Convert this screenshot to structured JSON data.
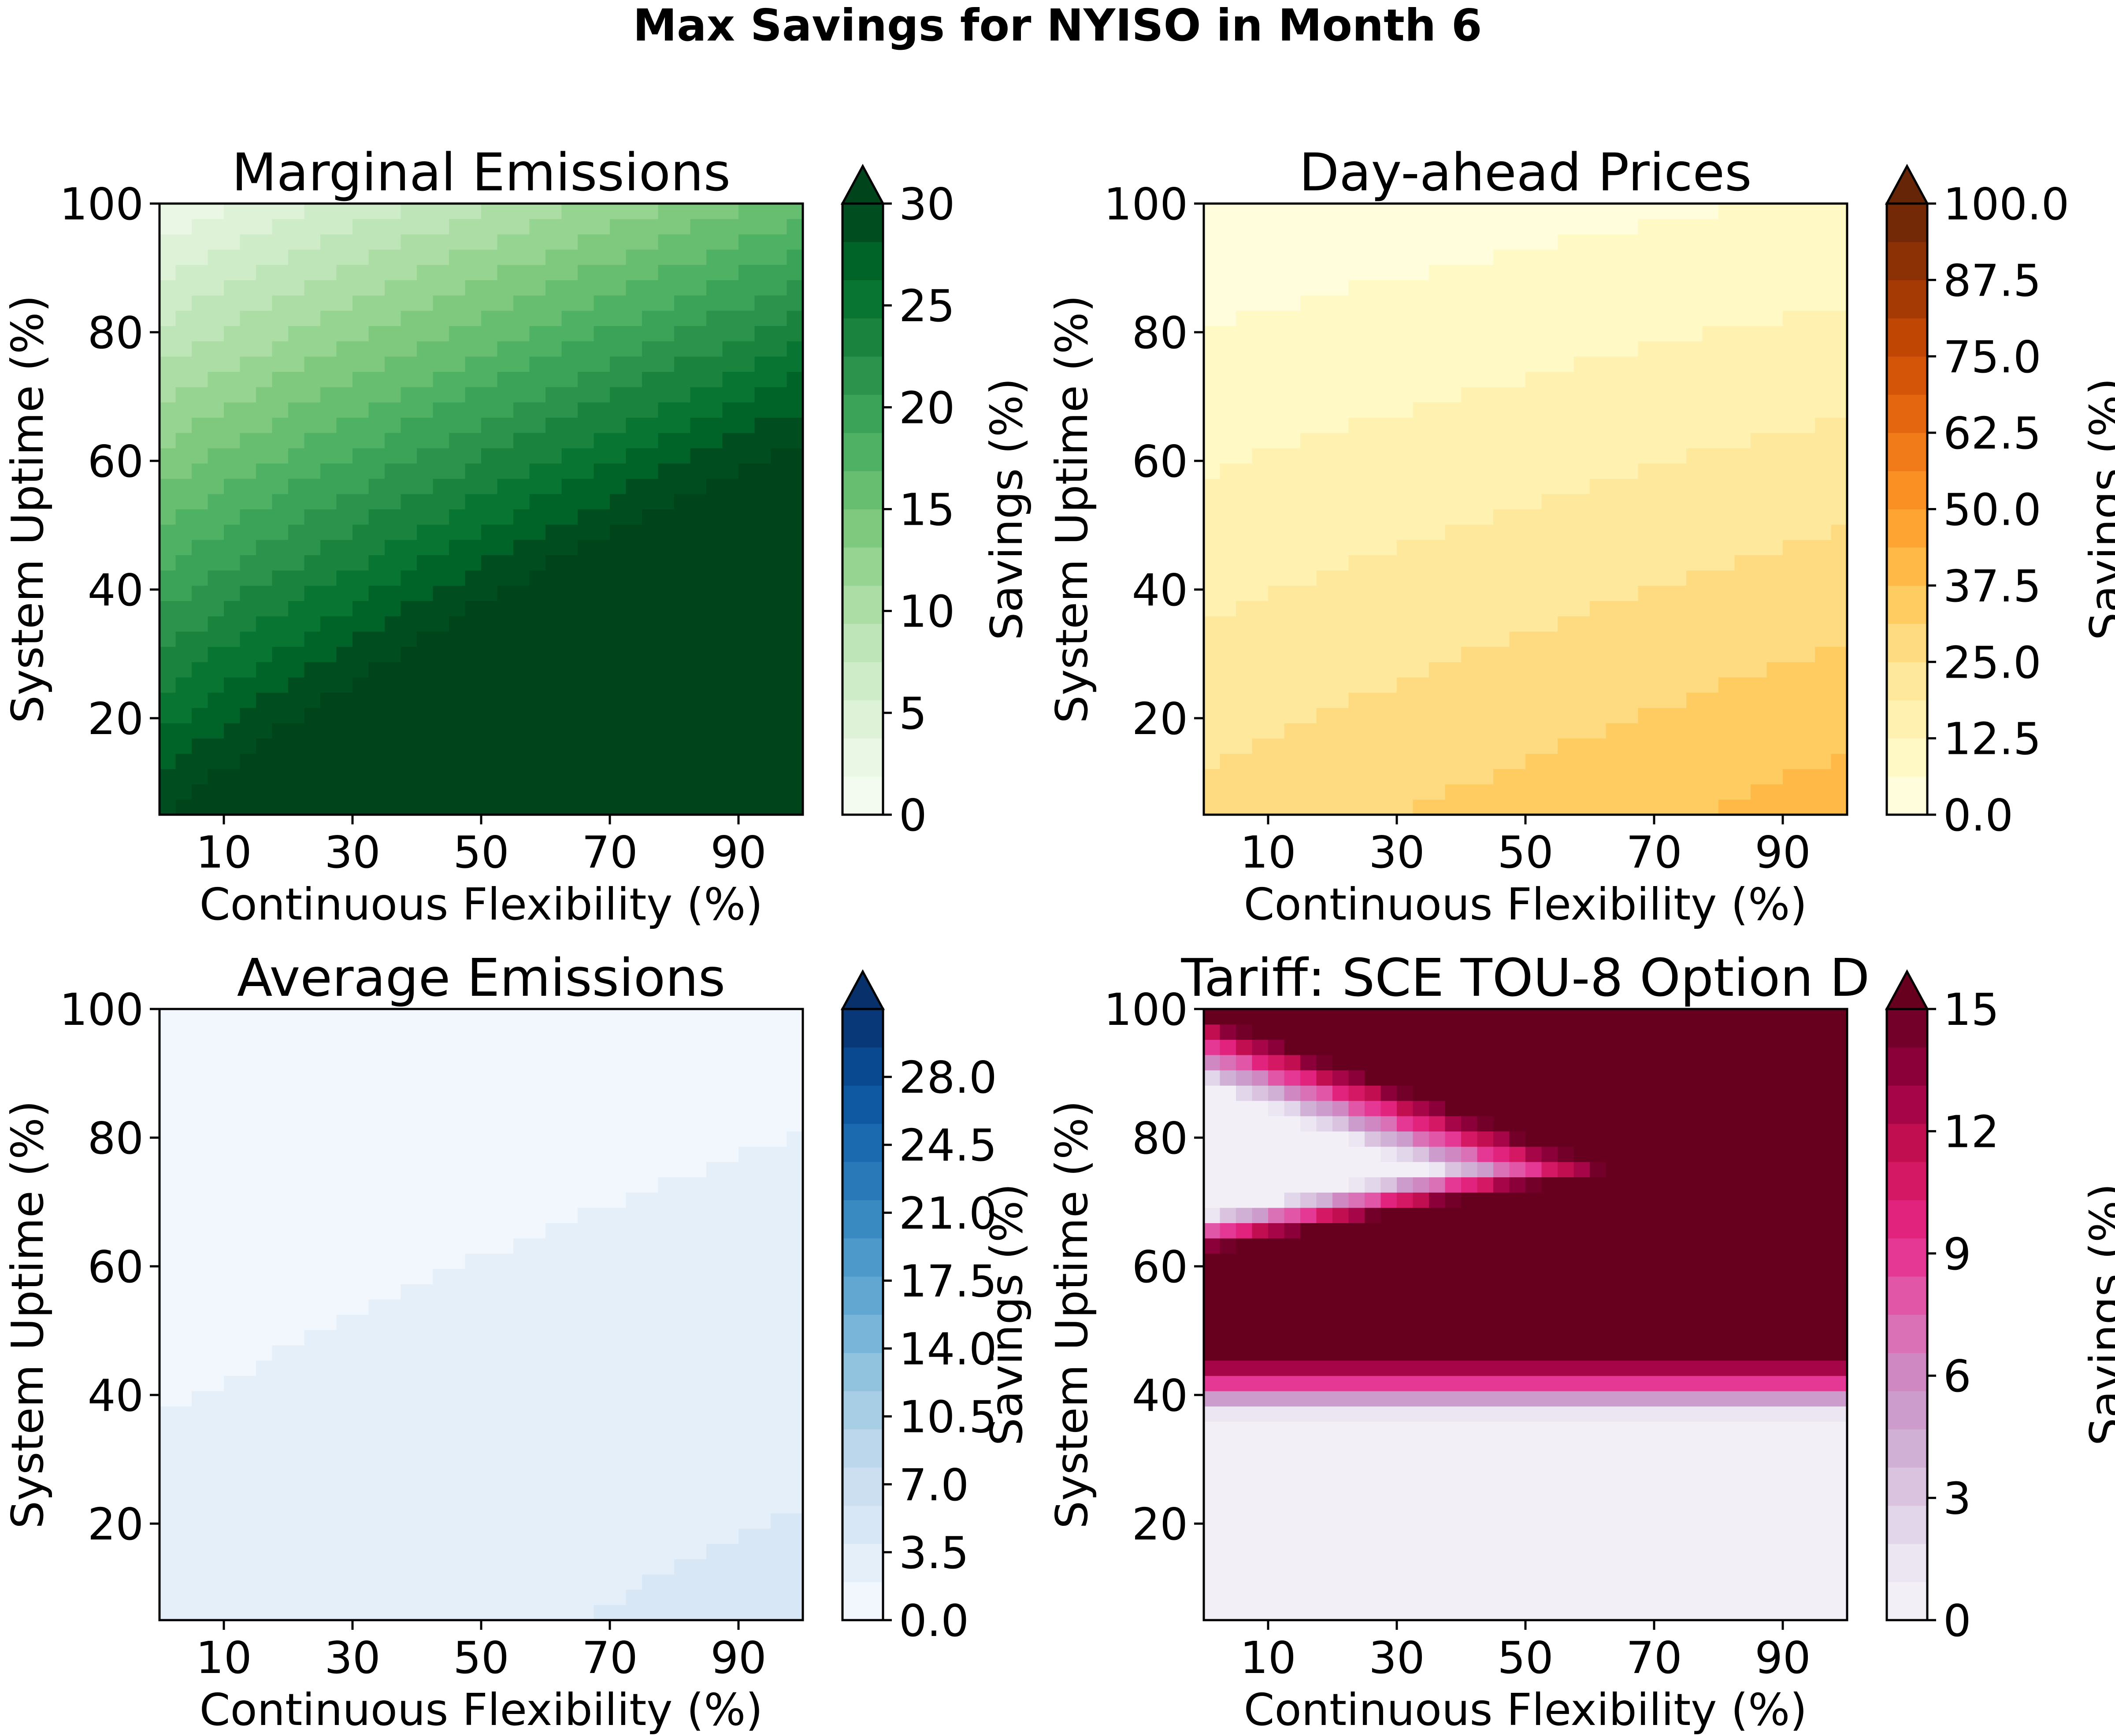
{
  "figure": {
    "title": "Max Savings for NYISO in Month 6"
  },
  "chart_data": [
    {
      "type": "heatmap",
      "title": "Marginal Emissions",
      "xlabel": "Continuous Flexibility (%)",
      "ylabel": "System Uptime (%)",
      "xlim": [
        0,
        100
      ],
      "ylim": [
        5,
        100
      ],
      "xticks": [
        10,
        30,
        50,
        70,
        90
      ],
      "yticks": [
        20,
        40,
        60,
        80,
        100
      ],
      "colorbar_label": "Savings (%)",
      "colorbar_range": [
        0,
        30
      ],
      "colorbar_ticks": [
        "0",
        "5",
        "10",
        "15",
        "20",
        "25",
        "30"
      ],
      "colormap": "Greens",
      "colorbar_extend": "max",
      "model": {
        "kind": "linear",
        "a": 2,
        "b": 14,
        "c": 28,
        "cap": 30
      }
    },
    {
      "type": "heatmap",
      "title": "Day-ahead Prices",
      "xlabel": "Continuous Flexibility (%)",
      "ylabel": "System Uptime (%)",
      "xlim": [
        0,
        100
      ],
      "ylim": [
        5,
        100
      ],
      "xticks": [
        10,
        30,
        50,
        70,
        90
      ],
      "yticks": [
        20,
        40,
        60,
        80,
        100
      ],
      "colorbar_label": "Savings (%)",
      "colorbar_range": [
        0,
        100
      ],
      "colorbar_ticks": [
        "0.0",
        "12.5",
        "25.0",
        "37.5",
        "50.0",
        "62.5",
        "75.0",
        "87.5",
        "100.0"
      ],
      "colormap": "YlOrBr",
      "colorbar_extend": "max",
      "model": {
        "kind": "linear",
        "a": 1,
        "b": 6,
        "c": 26,
        "cap": 100
      }
    },
    {
      "type": "heatmap",
      "title": "Average Emissions",
      "xlabel": "Continuous Flexibility (%)",
      "ylabel": "System Uptime (%)",
      "xlim": [
        0,
        100
      ],
      "ylim": [
        5,
        100
      ],
      "xticks": [
        10,
        30,
        50,
        70,
        90
      ],
      "yticks": [
        20,
        40,
        60,
        80,
        100
      ],
      "colorbar_label": "Savings (%)",
      "colorbar_range": [
        0,
        31.5
      ],
      "colorbar_ticks": [
        "0.0",
        "3.5",
        "7.0",
        "10.5",
        "14.0",
        "17.5",
        "21.0",
        "24.5",
        "28.0"
      ],
      "colormap": "Blues",
      "colorbar_extend": "max",
      "model": {
        "kind": "linear",
        "a": 0.3,
        "b": 1,
        "c": 2.5,
        "cap": 31.5
      }
    },
    {
      "type": "heatmap",
      "title": "Tariff: SCE TOU-8 Option D",
      "xlabel": "Continuous Flexibility (%)",
      "ylabel": "System Uptime (%)",
      "xlim": [
        0,
        100
      ],
      "ylim": [
        5,
        100
      ],
      "xticks": [
        10,
        30,
        50,
        70,
        90
      ],
      "yticks": [
        20,
        40,
        60,
        80,
        100
      ],
      "colorbar_label": "Savings (%)",
      "colorbar_range": [
        0,
        15
      ],
      "colorbar_ticks": [
        "0",
        "3",
        "6",
        "9",
        "12",
        "15"
      ],
      "colormap": "PuRd",
      "colorbar_extend": "max",
      "model": {
        "kind": "tariff",
        "cap": 15
      }
    }
  ]
}
